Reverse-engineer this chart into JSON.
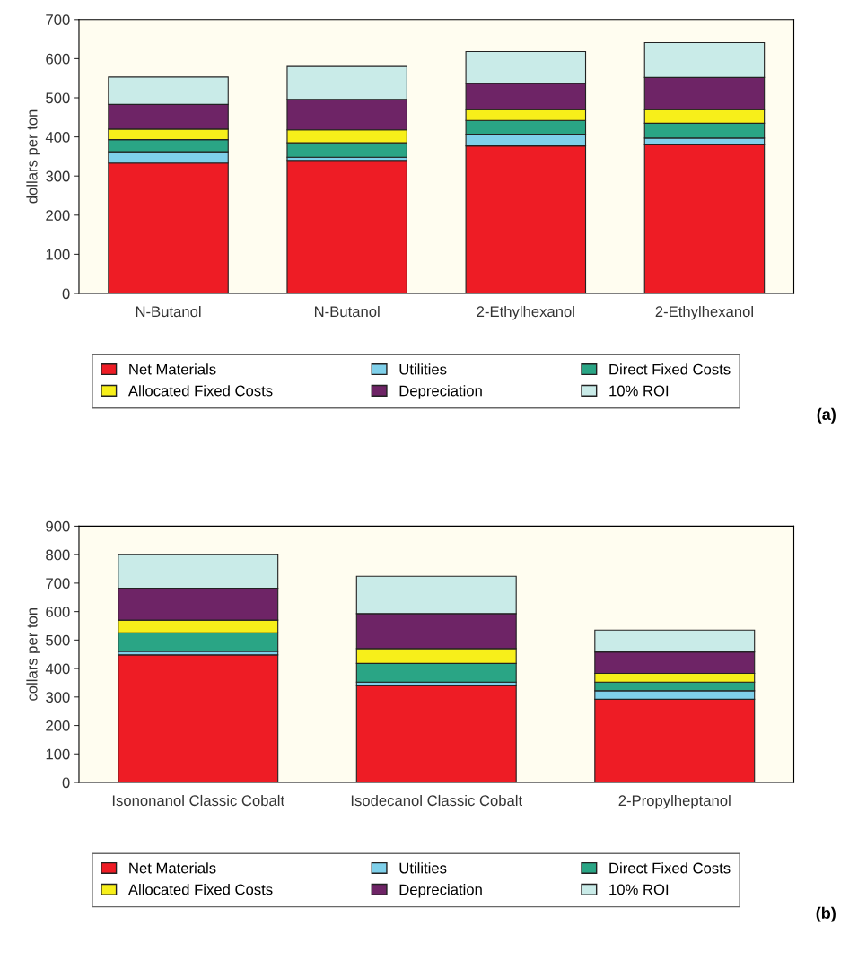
{
  "chart_data": [
    {
      "type": "bar",
      "stacked": true,
      "ylabel": "dollars per ton",
      "categories": [
        "N-Butanol",
        "N-Butanol",
        "2-Ethylhexanol",
        "2-Ethylhexanol"
      ],
      "ylim": [
        0,
        700
      ],
      "yticks": [
        0,
        100,
        200,
        300,
        400,
        500,
        600,
        700
      ],
      "grid": false,
      "legend": "bottom",
      "annotations": [
        "(a)"
      ],
      "series": [
        {
          "name": "Net Materials",
          "color": "#ee1c25",
          "values": [
            333,
            340,
            377,
            380
          ]
        },
        {
          "name": "Utilities",
          "color": "#7fd0ea",
          "values": [
            29,
            8,
            30,
            17
          ]
        },
        {
          "name": "Direct Fixed Costs",
          "color": "#2aa585",
          "values": [
            31,
            37,
            35,
            38
          ]
        },
        {
          "name": "Allocated Fixed Costs",
          "color": "#f7ef1a",
          "values": [
            27,
            33,
            28,
            35
          ]
        },
        {
          "name": "Depreciation",
          "color": "#6e2466",
          "values": [
            63,
            78,
            67,
            82
          ]
        },
        {
          "name": "10% ROI",
          "color": "#c9ebe8",
          "values": [
            70,
            84,
            81,
            89
          ]
        }
      ]
    },
    {
      "type": "bar",
      "stacked": true,
      "ylabel": "collars per ton",
      "categories": [
        "Isononanol Classic Cobalt",
        "Isodecanol Classic Cobalt",
        "2-Propylheptanol"
      ],
      "ylim": [
        0,
        900
      ],
      "yticks": [
        0,
        100,
        200,
        300,
        400,
        500,
        600,
        700,
        800,
        900
      ],
      "grid": false,
      "legend": "bottom",
      "annotations": [
        "(b)"
      ],
      "series": [
        {
          "name": "Net Materials",
          "color": "#ee1c25",
          "values": [
            448,
            340,
            292
          ]
        },
        {
          "name": "Utilities",
          "color": "#7fd0ea",
          "values": [
            12,
            12,
            30
          ]
        },
        {
          "name": "Direct Fixed Costs",
          "color": "#2aa585",
          "values": [
            65,
            66,
            30
          ]
        },
        {
          "name": "Allocated Fixed Costs",
          "color": "#f7ef1a",
          "values": [
            45,
            52,
            31
          ]
        },
        {
          "name": "Depreciation",
          "color": "#6e2466",
          "values": [
            112,
            123,
            75
          ]
        },
        {
          "name": "10% ROI",
          "color": "#c9ebe8",
          "values": [
            118,
            131,
            77
          ]
        }
      ]
    }
  ]
}
